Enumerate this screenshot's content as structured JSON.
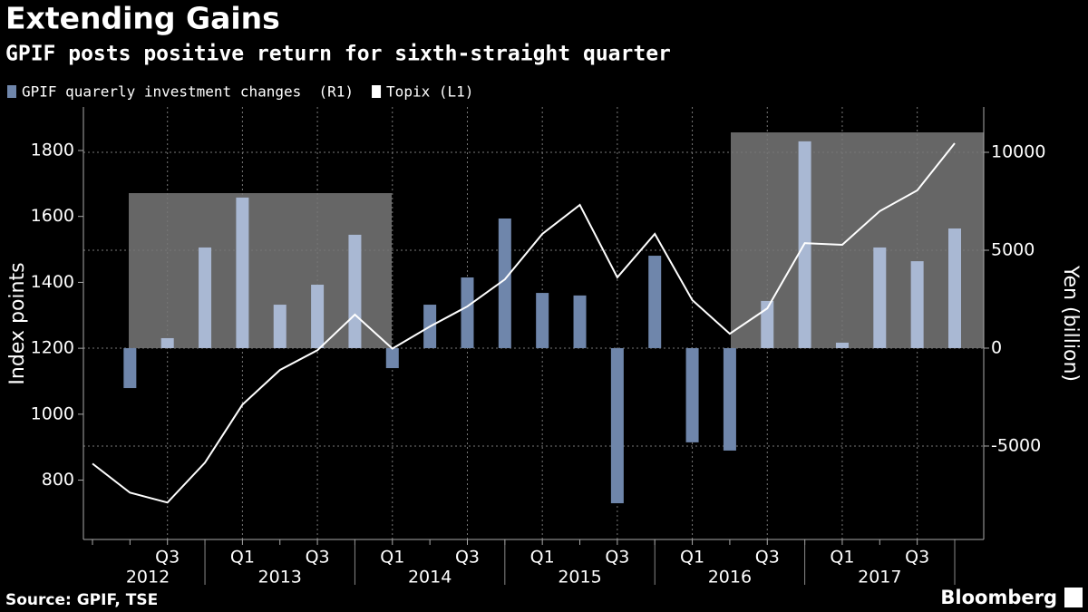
{
  "chart_data": {
    "type": "bar_line",
    "title": "Extending Gains",
    "subtitle": "GPIF posts positive return for sixth-straight quarter",
    "y_label": "Index points",
    "y2_label": "Yen (billion)",
    "source": "Source: GPIF, TSE",
    "brand": "Bloomberg",
    "categories": [
      null,
      null,
      "Q3",
      null,
      "Q1",
      null,
      "Q3",
      null,
      "Q1",
      null,
      "Q3",
      null,
      "Q1",
      null,
      "Q3",
      null,
      "Q1",
      null,
      "Q3",
      null,
      "Q1",
      null,
      "Q3",
      null
    ],
    "years": [
      "2012",
      "2013",
      "2014",
      "2015",
      "2016",
      "2017"
    ],
    "series": [
      {
        "name": "GPIF quarerly investment changes  (R1)",
        "type": "bar",
        "axis": "y2",
        "color": "#6f86ab",
        "colors": [
          null,
          "#6f86ab",
          "#a9b8d3",
          "#a9b8d3",
          "#a9b8d3",
          "#a9b8d3",
          "#a9b8d3",
          "#a9b8d3",
          "#6f86ab",
          "#6f86ab",
          "#6f86ab",
          "#6f86ab",
          "#6f86ab",
          "#6f86ab",
          "#6f86ab",
          "#6f86ab",
          "#6f86ab",
          "#6f86ab",
          "#a9b8d3",
          "#a9b8d3",
          "#a9b8d3",
          "#a9b8d3",
          "#a9b8d3",
          "#a9b8d3"
        ],
        "values": [
          null,
          -2040,
          510,
          5140,
          7690,
          2220,
          3240,
          5790,
          -1020,
          2220,
          3610,
          6620,
          2820,
          2690,
          -7920,
          4720,
          -4810,
          -5230,
          2410,
          10560,
          280,
          5140,
          4440,
          6110
        ]
      },
      {
        "name": "Topix (L1)",
        "type": "line",
        "axis": "y",
        "color": "#ffffff",
        "values": [
          850,
          762,
          732,
          853,
          1029,
          1134,
          1194,
          1302,
          1199,
          1266,
          1327,
          1409,
          1547,
          1635,
          1415,
          1547,
          1346,
          1244,
          1321,
          1519,
          1514,
          1616,
          1679,
          1822
        ]
      }
    ],
    "ylim": [
      620,
      1932
    ],
    "yticks": [
      800,
      1000,
      1200,
      1400,
      1600,
      1800
    ],
    "y2lim": [
      -9770,
      12315
    ],
    "y2ticks": [
      -5000,
      0,
      5000,
      10000
    ],
    "grid": true
  }
}
